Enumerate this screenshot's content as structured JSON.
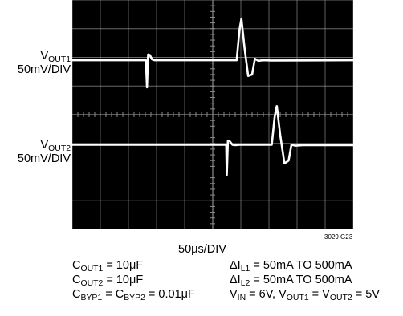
{
  "chart_data": {
    "type": "line",
    "title": "",
    "channels": [
      {
        "name_main": "V",
        "name_sub": "OUT1",
        "scale": "50mV/DIV",
        "label": "VOUT1 50mV/DIV",
        "color": "#ffffff",
        "x": [
          0.0,
          2.62,
          2.66,
          2.7,
          2.76,
          2.84,
          2.94,
          3.05,
          5.85,
          5.95,
          6.02,
          6.13,
          6.26,
          6.4,
          6.5,
          6.62,
          6.8,
          7.1,
          10.0
        ],
        "y": [
          -0.1,
          -0.1,
          -1.05,
          0.1,
          0.08,
          -0.07,
          -0.1,
          -0.1,
          -0.1,
          0.95,
          1.35,
          0.35,
          -0.65,
          -0.6,
          -0.05,
          -0.12,
          -0.1,
          -0.11,
          -0.1
        ]
      },
      {
        "name_main": "V",
        "name_sub": "OUT2",
        "scale": "50mV/DIV",
        "label": "VOUT2 50mV/DIV",
        "color": "#ffffff",
        "x": [
          0.0,
          5.0,
          5.48,
          5.5,
          5.54,
          5.6,
          5.7,
          5.8,
          5.95,
          7.1,
          7.2,
          7.28,
          7.4,
          7.55,
          7.7,
          7.8,
          7.95,
          8.2,
          10.0
        ],
        "y": [
          -0.05,
          -0.05,
          -0.05,
          -1.1,
          0.1,
          0.08,
          -0.05,
          -0.06,
          -0.05,
          -0.05,
          0.9,
          1.3,
          0.3,
          -0.7,
          -0.6,
          -0.05,
          -0.08,
          -0.06,
          -0.06
        ]
      }
    ],
    "x_axis": {
      "divisions": 10,
      "label": "50μs/DIV",
      "xlim": [
        0,
        10
      ]
    },
    "y_axis": {
      "divisions": 8,
      "ylim": [
        -4,
        4
      ]
    },
    "trace_offsets_div": [
      2.0,
      -1.0
    ],
    "grid": true,
    "background": "#000000",
    "grid_color": "#8c8c8c",
    "trace_color": "#ffffff",
    "figure_id": "3029 G23",
    "conditions": [
      {
        "main": "C",
        "sub": "OUT1",
        "rest": " = 10μF"
      },
      {
        "main": "C",
        "sub": "OUT2",
        "rest": " = 10μF"
      },
      {
        "main": "C",
        "sub": "BYP1",
        "mid": " = C",
        "sub2": "BYP2",
        "rest": " = 0.01μF"
      },
      {
        "pre": "ΔI",
        "sub": "L1",
        "rest": " = 50mA TO 500mA"
      },
      {
        "pre": "ΔI",
        "sub": "L2",
        "rest": " = 50mA TO 500mA"
      },
      {
        "pre": "V",
        "sub": "IN",
        "mid": " = 6V, V",
        "sub2": "OUT1",
        "mid2": " = V",
        "sub3": "OUT2",
        "rest": " = 5V"
      }
    ]
  }
}
